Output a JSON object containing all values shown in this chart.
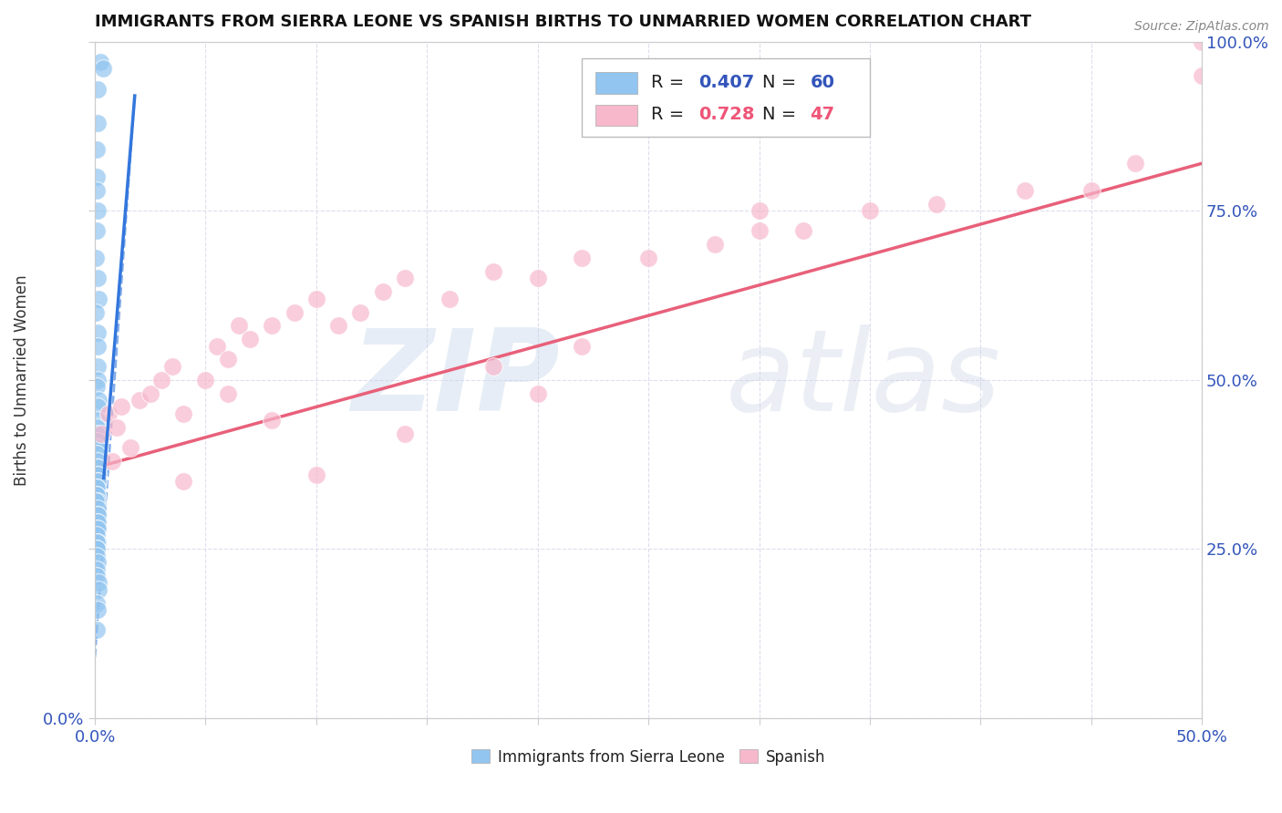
{
  "title": "IMMIGRANTS FROM SIERRA LEONE VS SPANISH BIRTHS TO UNMARRIED WOMEN CORRELATION CHART",
  "source": "Source: ZipAtlas.com",
  "ylabel": "Births to Unmarried Women",
  "xlim": [
    0.0,
    0.5
  ],
  "ylim": [
    0.0,
    1.0
  ],
  "xticks": [
    0.0,
    0.05,
    0.1,
    0.15,
    0.2,
    0.25,
    0.3,
    0.35,
    0.4,
    0.45,
    0.5
  ],
  "yticks": [
    0.0,
    0.25,
    0.5,
    0.75,
    1.0
  ],
  "blue_color": "#92C5F0",
  "pink_color": "#F7B8CC",
  "blue_line_color": "#3377DD",
  "pink_line_color": "#E8607A",
  "grid_color": "#DDDDEE",
  "tick_label_color": "#3355BB",
  "blue_scatter": {
    "x": [
      0.002,
      0.004,
      0.001,
      0.001,
      0.001,
      0.001,
      0.001,
      0.001,
      0.001,
      0.001,
      0.001,
      0.001,
      0.001,
      0.001,
      0.001,
      0.001,
      0.001,
      0.001,
      0.001,
      0.001,
      0.001,
      0.001,
      0.001,
      0.001,
      0.001,
      0.001,
      0.001,
      0.001,
      0.001,
      0.001,
      0.001,
      0.001,
      0.001,
      0.001,
      0.001,
      0.001,
      0.001,
      0.001,
      0.001,
      0.001,
      0.001,
      0.001,
      0.001,
      0.001,
      0.001,
      0.001,
      0.001,
      0.001,
      0.001,
      0.001,
      0.001,
      0.001,
      0.001,
      0.001,
      0.001,
      0.001,
      0.001,
      0.001,
      0.001,
      0.001
    ],
    "y": [
      0.97,
      0.96,
      0.93,
      0.88,
      0.84,
      0.8,
      0.78,
      0.75,
      0.72,
      0.68,
      0.65,
      0.62,
      0.6,
      0.57,
      0.55,
      0.52,
      0.5,
      0.49,
      0.47,
      0.46,
      0.44,
      0.43,
      0.42,
      0.41,
      0.4,
      0.39,
      0.38,
      0.37,
      0.37,
      0.36,
      0.36,
      0.35,
      0.35,
      0.34,
      0.34,
      0.33,
      0.33,
      0.32,
      0.32,
      0.31,
      0.3,
      0.3,
      0.29,
      0.29,
      0.28,
      0.28,
      0.27,
      0.26,
      0.26,
      0.25,
      0.25,
      0.24,
      0.23,
      0.22,
      0.21,
      0.2,
      0.19,
      0.17,
      0.16,
      0.13
    ]
  },
  "pink_scatter": {
    "x": [
      0.003,
      0.006,
      0.008,
      0.01,
      0.012,
      0.016,
      0.02,
      0.025,
      0.03,
      0.035,
      0.04,
      0.05,
      0.055,
      0.06,
      0.065,
      0.07,
      0.08,
      0.09,
      0.1,
      0.11,
      0.12,
      0.13,
      0.14,
      0.16,
      0.18,
      0.2,
      0.22,
      0.25,
      0.28,
      0.3,
      0.32,
      0.35,
      0.38,
      0.42,
      0.45,
      0.47,
      0.5,
      0.5,
      0.3,
      0.2,
      0.22,
      0.18,
      0.14,
      0.1,
      0.08,
      0.06,
      0.04
    ],
    "y": [
      0.42,
      0.45,
      0.38,
      0.43,
      0.46,
      0.4,
      0.47,
      0.48,
      0.5,
      0.52,
      0.45,
      0.5,
      0.55,
      0.53,
      0.58,
      0.56,
      0.58,
      0.6,
      0.62,
      0.58,
      0.6,
      0.63,
      0.65,
      0.62,
      0.66,
      0.65,
      0.68,
      0.68,
      0.7,
      0.72,
      0.72,
      0.75,
      0.76,
      0.78,
      0.78,
      0.82,
      1.0,
      0.95,
      0.75,
      0.48,
      0.55,
      0.52,
      0.42,
      0.36,
      0.44,
      0.48,
      0.35
    ]
  },
  "blue_line_solid": {
    "x0": 0.004,
    "x1": 0.018,
    "y0": 0.355,
    "y1": 0.92
  },
  "blue_line_dashed": {
    "x0": 0.0,
    "x1": 0.018,
    "y0": 0.09,
    "y1": 0.92
  },
  "pink_line": {
    "x0": 0.0,
    "x1": 0.5,
    "y0": 0.37,
    "y1": 0.82
  }
}
